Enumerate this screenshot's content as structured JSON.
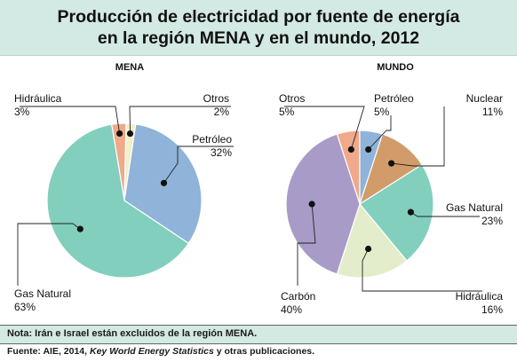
{
  "title_line1": "Producción de electricidad por fuente de energía",
  "title_line2": "en la región MENA y en el mundo, 2012",
  "colors": {
    "header_bg": "#d3e9e3",
    "petroleo": "#8fb3d9",
    "hidraulica_mena": "#f0a98a",
    "otros_mena": "#f2f0c8",
    "gas": "#82cfbd",
    "otros_mundo": "#f0a98a",
    "nuclear": "#d19c6a",
    "hidraulica_mundo": "#e3edcb",
    "carbon": "#a99bc7"
  },
  "chart_data": [
    {
      "type": "pie",
      "title": "MENA",
      "slices": [
        {
          "label": "Hidráulica",
          "value": 3,
          "pct": "3%",
          "color": "#f0a98a"
        },
        {
          "label": "Otros",
          "value": 2,
          "pct": "2%",
          "color": "#f2f0c8"
        },
        {
          "label": "Petróleo",
          "value": 32,
          "pct": "32%",
          "color": "#8fb3d9"
        },
        {
          "label": "Gas Natural",
          "value": 63,
          "pct": "63%",
          "color": "#82cfbd"
        }
      ]
    },
    {
      "type": "pie",
      "title": "MUNDO",
      "slices": [
        {
          "label": "Otros",
          "value": 5,
          "pct": "5%",
          "color": "#f0a98a"
        },
        {
          "label": "Petróleo",
          "value": 5,
          "pct": "5%",
          "color": "#8fb3d9"
        },
        {
          "label": "Nuclear",
          "value": 11,
          "pct": "11%",
          "color": "#d19c6a"
        },
        {
          "label": "Gas Natural",
          "value": 23,
          "pct": "23%",
          "color": "#82cfbd"
        },
        {
          "label": "Hidráulica",
          "value": 16,
          "pct": "16%",
          "color": "#e3edcb"
        },
        {
          "label": "Carbón",
          "value": 40,
          "pct": "40%",
          "color": "#a99bc7"
        }
      ]
    }
  ],
  "note": "Nota: Irán e Israel están excluidos de la región MENA.",
  "source_prefix": "Fuente: AIE, 2014, ",
  "source_italic": "Key World Energy Statistics",
  "source_suffix": " y otras publicaciones."
}
